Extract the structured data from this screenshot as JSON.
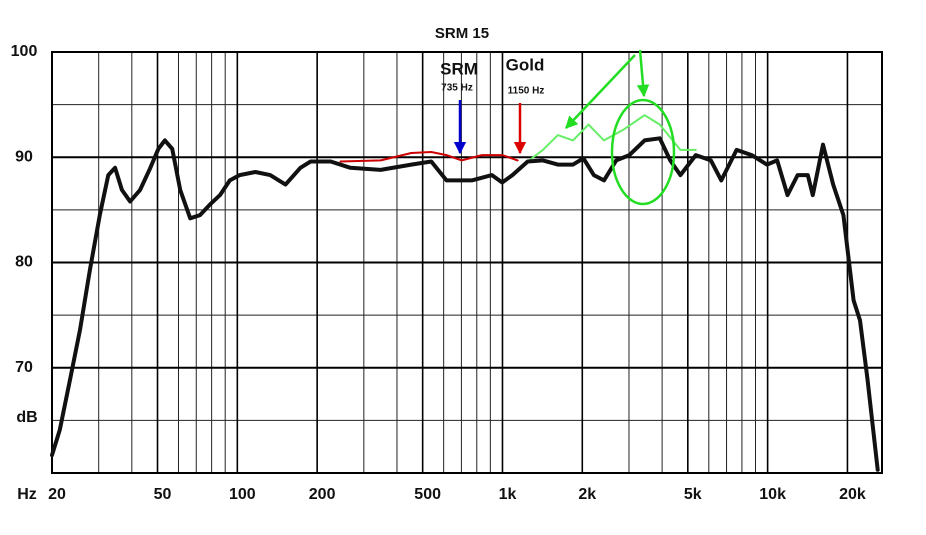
{
  "chart_data": {
    "type": "line",
    "title": "SRM 15",
    "x_label": "Hz",
    "y_label": "dB",
    "x_scale": "log",
    "xlim": [
      20,
      27000
    ],
    "ylim": [
      60,
      100
    ],
    "xticks": [
      20,
      50,
      100,
      200,
      500,
      {
        "value": 1000,
        "label": "1k"
      },
      {
        "value": 2000,
        "label": "2k"
      },
      {
        "value": 5000,
        "label": "5k"
      },
      {
        "value": 10000,
        "label": "10k"
      },
      {
        "value": 20000,
        "label": "20k"
      }
    ],
    "x_minor_ticks": [
      30,
      40,
      60,
      70,
      80,
      90,
      300,
      400,
      600,
      700,
      800,
      900,
      3000,
      4000,
      6000,
      7000,
      8000,
      9000
    ],
    "yticks": [
      70,
      80,
      90,
      100
    ],
    "y_minor_ticks": [
      65,
      75,
      85,
      95
    ],
    "grid": true,
    "series": [
      {
        "name": "SRM",
        "color": "#111111",
        "x": [
          20,
          21.4,
          23.4,
          25.5,
          27.8,
          30.3,
          32.6,
          34.6,
          36.7,
          39.4,
          43,
          46.8,
          50.4,
          53.3,
          56.8,
          60.9,
          66.4,
          72.3,
          78.8,
          86,
          93.7,
          102,
          117,
          133,
          152,
          173,
          189,
          225,
          267,
          347,
          453,
          539,
          615,
          766,
          912,
          998,
          1090,
          1245,
          1420,
          1618,
          1845,
          2020,
          2210,
          2415,
          2685,
          3010,
          3435,
          3920,
          4290,
          4690,
          5360,
          6110,
          6690,
          7640,
          8710,
          9940,
          10870,
          11880,
          12970,
          14170,
          14800,
          16180,
          17670,
          19310,
          21100,
          22300,
          23800,
          26000
        ],
        "values": [
          61.7,
          64.1,
          68.9,
          73.6,
          79.3,
          84.5,
          88.3,
          89.0,
          86.9,
          85.8,
          86.9,
          88.9,
          90.8,
          91.6,
          90.8,
          86.9,
          84.2,
          84.5,
          85.5,
          86.4,
          87.8,
          88.3,
          88.6,
          88.3,
          87.4,
          89.0,
          89.6,
          89.6,
          89.0,
          88.8,
          89.3,
          89.6,
          87.8,
          87.8,
          88.3,
          87.6,
          88.3,
          89.6,
          89.7,
          89.3,
          89.3,
          89.9,
          88.3,
          87.8,
          89.7,
          90.2,
          91.6,
          91.8,
          89.7,
          88.3,
          90.2,
          89.7,
          87.8,
          90.7,
          90.2,
          89.3,
          89.7,
          86.4,
          88.3,
          88.3,
          86.4,
          91.2,
          87.4,
          84.5,
          76.4,
          74.5,
          68.9,
          60.3
        ]
      },
      {
        "name": "Gold",
        "color": "#cc0000",
        "x": [
          245,
          347,
          453,
          539,
          615,
          702,
          836,
          998,
          1140
        ],
        "values": [
          89.6,
          89.7,
          90.4,
          90.5,
          90.2,
          89.7,
          90.2,
          90.2,
          89.7
        ]
      },
      {
        "name": "Gold (upper range)",
        "color": "#66ee66",
        "x": [
          1090,
          1245,
          1420,
          1618,
          1845,
          2110,
          2415,
          2850,
          3435,
          3920,
          4690,
          5360
        ],
        "values": [
          88.3,
          89.6,
          90.7,
          92.1,
          91.6,
          93.1,
          91.6,
          92.6,
          94.0,
          93.1,
          90.7,
          90.7
        ]
      }
    ],
    "annotations": [
      {
        "text": "SRM",
        "color": "#0000cc"
      },
      {
        "text": "735 Hz",
        "color": "#0000cc"
      },
      {
        "text": "Gold",
        "color": "#dd0000"
      },
      {
        "text": "1150 Hz",
        "color": "#dd0000"
      }
    ]
  }
}
